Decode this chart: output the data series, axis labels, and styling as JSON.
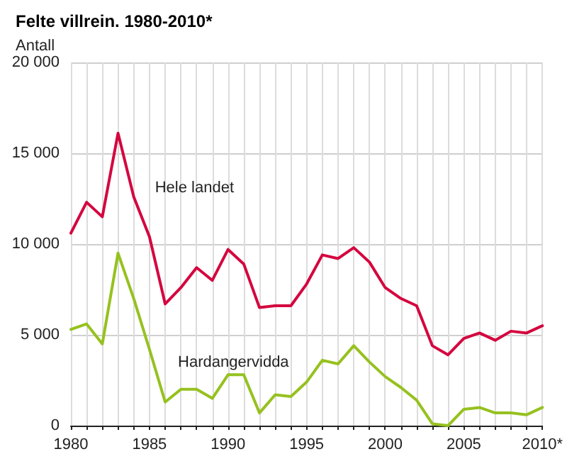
{
  "chart_data": {
    "type": "line",
    "title": "Felte villrein. 1980-2010*",
    "ylabel": "Antall",
    "x": [
      1980,
      1981,
      1982,
      1983,
      1984,
      1985,
      1986,
      1987,
      1988,
      1989,
      1990,
      1991,
      1992,
      1993,
      1994,
      1995,
      1996,
      1997,
      1998,
      1999,
      2000,
      2001,
      2002,
      2003,
      2004,
      2005,
      2006,
      2007,
      2008,
      2009,
      2010
    ],
    "series": [
      {
        "name": "Hele landet",
        "color": "#d4063f",
        "values": [
          10600,
          12300,
          11500,
          16100,
          12600,
          10400,
          6700,
          7600,
          8700,
          8000,
          9700,
          8900,
          6500,
          6600,
          6600,
          7800,
          9400,
          9200,
          9800,
          9000,
          7600,
          7000,
          6600,
          4400,
          3900,
          4800,
          5100,
          4700,
          5200,
          5100,
          5500
        ]
      },
      {
        "name": "Hardangervidda",
        "color": "#96c11f",
        "values": [
          5300,
          5600,
          4500,
          9500,
          7000,
          4200,
          1300,
          2000,
          2000,
          1500,
          2800,
          2800,
          700,
          1700,
          1600,
          2400,
          3600,
          3400,
          4400,
          3500,
          2700,
          2100,
          1400,
          100,
          0,
          900,
          1000,
          700,
          700,
          600,
          1000
        ]
      }
    ],
    "xlim": [
      1980,
      2010
    ],
    "xticks": [
      1980,
      {
        "value": 1981,
        "label": null
      },
      {
        "value": 1982,
        "label": null
      },
      {
        "value": 1983,
        "label": null
      },
      {
        "value": 1984,
        "label": null
      },
      1985,
      {
        "value": 1986,
        "label": null
      },
      {
        "value": 1987,
        "label": null
      },
      {
        "value": 1988,
        "label": null
      },
      {
        "value": 1989,
        "label": null
      },
      1990,
      {
        "value": 1991,
        "label": null
      },
      {
        "value": 1992,
        "label": null
      },
      {
        "value": 1993,
        "label": null
      },
      {
        "value": 1994,
        "label": null
      },
      1995,
      {
        "value": 1996,
        "label": null
      },
      {
        "value": 1997,
        "label": null
      },
      {
        "value": 1998,
        "label": null
      },
      {
        "value": 1999,
        "label": null
      },
      2000,
      {
        "value": 2001,
        "label": null
      },
      {
        "value": 2002,
        "label": null
      },
      {
        "value": 2003,
        "label": null
      },
      {
        "value": 2004,
        "label": null
      },
      2005,
      {
        "value": 2006,
        "label": null
      },
      {
        "value": 2007,
        "label": null
      },
      {
        "value": 2008,
        "label": null
      },
      {
        "value": 2009,
        "label": null
      },
      {
        "value": 2010,
        "label": "2010*"
      }
    ],
    "ylim": [
      0,
      20000
    ],
    "yticks": [
      0,
      {
        "value": 5000,
        "label": "5 000"
      },
      {
        "value": 10000,
        "label": "10 000"
      },
      {
        "value": 15000,
        "label": "15 000"
      },
      {
        "value": 20000,
        "label": "20 000"
      }
    ],
    "grid": true,
    "legend": false,
    "marker": "none",
    "line_style": "solid"
  }
}
